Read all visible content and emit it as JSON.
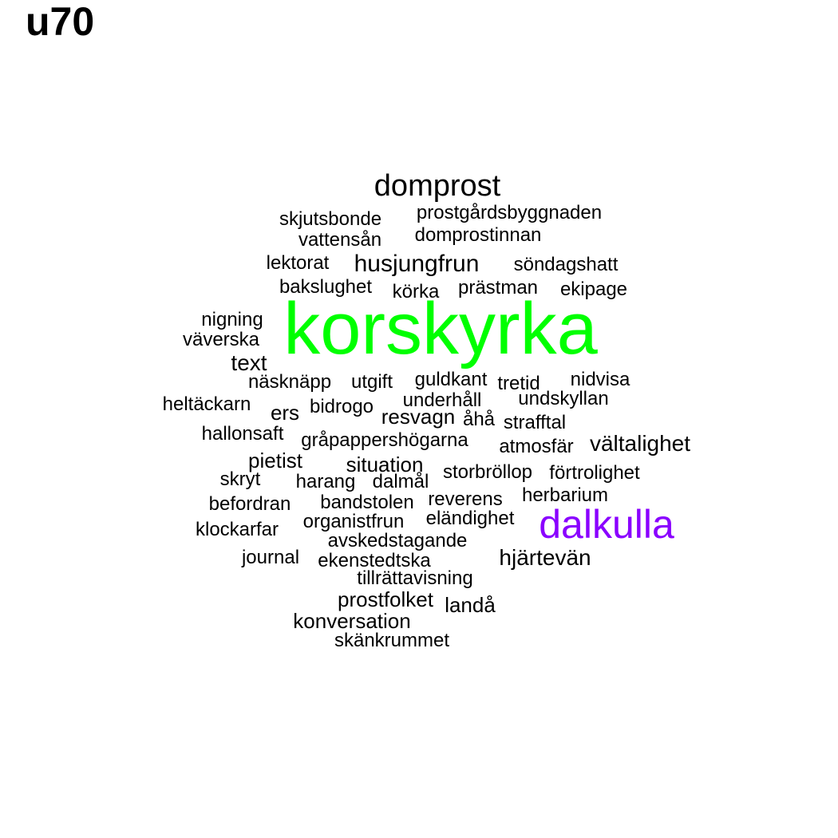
{
  "title": "u70",
  "colors": {
    "default": "#000000",
    "highlight_green": "#00ff00",
    "highlight_purple": "#8a00ff"
  },
  "words": [
    "domprost",
    "skjutsbonde",
    "prostgårdsbyggnaden",
    "vattensån",
    "domprostinnan",
    "lektorat",
    "husjungfrun",
    "söndagshatt",
    "bakslughet",
    "körka",
    "prästman",
    "ekipage",
    "nigning",
    "korskyrka",
    "väverska",
    "text",
    "näsknäpp",
    "utgift",
    "guldkant",
    "tretid",
    "nidvisa",
    "heltäckarn",
    "underhåll",
    "undskyllan",
    "ers",
    "bidrogo",
    "resvagn",
    "åhå",
    "strafftal",
    "hallonsaft",
    "gråpappershögarna",
    "atmosfär",
    "vältalighet",
    "pietist",
    "situation",
    "skryt",
    "harang",
    "dalmål",
    "storbröllop",
    "förtrolighet",
    "herbarium",
    "befordran",
    "bandstolen",
    "reverens",
    "klockarfar",
    "organistfrun",
    "eländighet",
    "dalkulla",
    "avskedstagande",
    "journal",
    "ekenstedtska",
    "hjärtevän",
    "tillrättavisning",
    "prostfolket",
    "landå",
    "konversation",
    "skänkrummet"
  ]
}
